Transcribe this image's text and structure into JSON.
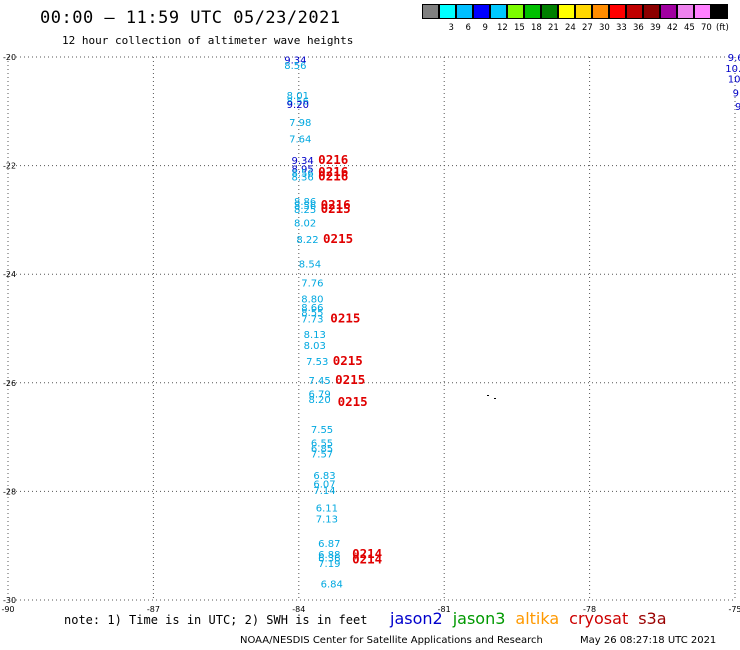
{
  "title": "00:00 – 11:59 UTC 05/23/2021",
  "subtitle": "12 hour collection of altimeter wave heights",
  "legend": {
    "unit": "(ft)",
    "bins": [
      {
        "label": "",
        "color": "#808080"
      },
      {
        "label": "3",
        "color": "#00ffff"
      },
      {
        "label": "6",
        "color": "#00bfff"
      },
      {
        "label": "9",
        "color": "#0000ff"
      },
      {
        "label": "12",
        "color": "#00c8ff"
      },
      {
        "label": "15",
        "color": "#7cfc00"
      },
      {
        "label": "18",
        "color": "#00c000"
      },
      {
        "label": "21",
        "color": "#008000"
      },
      {
        "label": "24",
        "color": "#ffff00"
      },
      {
        "label": "27",
        "color": "#ffd700"
      },
      {
        "label": "30",
        "color": "#ff8c00"
      },
      {
        "label": "33",
        "color": "#ff0000"
      },
      {
        "label": "36",
        "color": "#c00000"
      },
      {
        "label": "39",
        "color": "#8b0000"
      },
      {
        "label": "42",
        "color": "#a000a0"
      },
      {
        "label": "45",
        "color": "#ee82ee"
      },
      {
        "label": "70",
        "color": "#ff80ff"
      },
      {
        "label": "",
        "color": "#000000"
      }
    ]
  },
  "map": {
    "lon_range": [
      -90,
      -75
    ],
    "lat_range": [
      -30,
      -20
    ],
    "lon_ticks": [
      "-90",
      "-87",
      "-84",
      "-81",
      "-78",
      "-75"
    ],
    "lat_ticks": [
      "-20",
      "-22",
      "-24",
      "-26",
      "-28",
      "-30"
    ],
    "grid": "dotted"
  },
  "observations": [
    {
      "lon": -84.3,
      "lat": -20.05,
      "swh": "9.34",
      "color": "#0000c8"
    },
    {
      "lon": -84.3,
      "lat": -20.15,
      "swh": "8.56",
      "color": "#00a8e0"
    },
    {
      "lon": -84.25,
      "lat": -20.7,
      "swh": "8.01",
      "color": "#00a8e0"
    },
    {
      "lon": -84.25,
      "lat": -20.8,
      "swh": "8.56",
      "color": "#00a8e0"
    },
    {
      "lon": -84.25,
      "lat": -20.87,
      "swh": "9.20",
      "color": "#0000c8"
    },
    {
      "lon": -84.2,
      "lat": -21.2,
      "swh": "7.98",
      "color": "#00a8e0"
    },
    {
      "lon": -84.2,
      "lat": -21.5,
      "swh": "7.64",
      "color": "#00a8e0"
    },
    {
      "lon": -84.15,
      "lat": -21.9,
      "swh": "9.34",
      "color": "#0000c8"
    },
    {
      "lon": -84.15,
      "lat": -22.05,
      "swh": "8.95",
      "color": "#0000c8"
    },
    {
      "lon": -84.15,
      "lat": -22.13,
      "swh": "8.56",
      "color": "#00a8e0"
    },
    {
      "lon": -84.15,
      "lat": -22.2,
      "swh": "8.36",
      "color": "#00a8e0"
    },
    {
      "lon": -84.1,
      "lat": -22.65,
      "swh": "8.86",
      "color": "#00a8e0"
    },
    {
      "lon": -84.1,
      "lat": -22.73,
      "swh": "8.56",
      "color": "#00a8e0"
    },
    {
      "lon": -84.1,
      "lat": -22.8,
      "swh": "8.25",
      "color": "#00a8e0"
    },
    {
      "lon": -84.1,
      "lat": -23.05,
      "swh": "8.02",
      "color": "#00a8e0"
    },
    {
      "lon": -84.05,
      "lat": -23.35,
      "swh": "8.22",
      "color": "#00a8e0"
    },
    {
      "lon": -84.0,
      "lat": -23.8,
      "swh": "8.54",
      "color": "#00a8e0"
    },
    {
      "lon": -83.95,
      "lat": -24.15,
      "swh": "7.76",
      "color": "#00a8e0"
    },
    {
      "lon": -83.95,
      "lat": -24.45,
      "swh": "8.80",
      "color": "#00a8e0"
    },
    {
      "lon": -83.95,
      "lat": -24.6,
      "swh": "8.66",
      "color": "#00a8e0"
    },
    {
      "lon": -83.95,
      "lat": -24.7,
      "swh": "8.55",
      "color": "#00a8e0"
    },
    {
      "lon": -83.95,
      "lat": -24.82,
      "swh": "7.73",
      "color": "#00a8e0"
    },
    {
      "lon": -83.9,
      "lat": -25.1,
      "swh": "8.13",
      "color": "#00a8e0"
    },
    {
      "lon": -83.9,
      "lat": -25.3,
      "swh": "8.03",
      "color": "#00a8e0"
    },
    {
      "lon": -83.85,
      "lat": -25.6,
      "swh": "7.53",
      "color": "#00a8e0"
    },
    {
      "lon": -83.8,
      "lat": -25.95,
      "swh": "7.45",
      "color": "#00a8e0"
    },
    {
      "lon": -83.8,
      "lat": -26.2,
      "swh": "6.79",
      "color": "#00a8e0"
    },
    {
      "lon": -83.8,
      "lat": -26.3,
      "swh": "8.20",
      "color": "#00a8e0"
    },
    {
      "lon": -83.75,
      "lat": -26.85,
      "swh": "7.55",
      "color": "#00a8e0"
    },
    {
      "lon": -83.75,
      "lat": -27.1,
      "swh": "6.55",
      "color": "#00a8e0"
    },
    {
      "lon": -83.75,
      "lat": -27.2,
      "swh": "6.85",
      "color": "#00a8e0"
    },
    {
      "lon": -83.75,
      "lat": -27.3,
      "swh": "7.57",
      "color": "#00a8e0"
    },
    {
      "lon": -83.7,
      "lat": -27.7,
      "swh": "6.83",
      "color": "#00a8e0"
    },
    {
      "lon": -83.7,
      "lat": -27.85,
      "swh": "6.07",
      "color": "#00a8e0"
    },
    {
      "lon": -83.7,
      "lat": -27.97,
      "swh": "7.14",
      "color": "#00a8e0"
    },
    {
      "lon": -83.65,
      "lat": -28.3,
      "swh": "6.11",
      "color": "#00a8e0"
    },
    {
      "lon": -83.65,
      "lat": -28.5,
      "swh": "7.13",
      "color": "#00a8e0"
    },
    {
      "lon": -83.6,
      "lat": -28.95,
      "swh": "6.87",
      "color": "#00a8e0"
    },
    {
      "lon": -83.6,
      "lat": -29.15,
      "swh": "6.88",
      "color": "#00a8e0"
    },
    {
      "lon": -83.6,
      "lat": -29.22,
      "swh": "6.36",
      "color": "#00a8e0"
    },
    {
      "lon": -83.6,
      "lat": -29.32,
      "swh": "7.19",
      "color": "#00a8e0"
    },
    {
      "lon": -83.55,
      "lat": -29.7,
      "swh": "6.84",
      "color": "#00a8e0"
    },
    {
      "lon": -75.15,
      "lat": -20.0,
      "swh": "9.6",
      "color": "#0000c8"
    },
    {
      "lon": -75.2,
      "lat": -20.2,
      "swh": "10.",
      "color": "#0000c8"
    },
    {
      "lon": -75.15,
      "lat": -20.4,
      "swh": "10",
      "color": "#0000c8"
    },
    {
      "lon": -75.05,
      "lat": -20.65,
      "swh": "9",
      "color": "#0000c8"
    },
    {
      "lon": -75.0,
      "lat": -20.9,
      "swh": "9",
      "color": "#0000c8"
    }
  ],
  "pass_labels": [
    {
      "lon": -83.6,
      "lat": -21.9,
      "text": "0216"
    },
    {
      "lon": -83.6,
      "lat": -22.12,
      "text": "0216"
    },
    {
      "lon": -83.6,
      "lat": -22.2,
      "text": "0216"
    },
    {
      "lon": -83.55,
      "lat": -22.73,
      "text": "0216"
    },
    {
      "lon": -83.55,
      "lat": -22.8,
      "text": "0215"
    },
    {
      "lon": -83.5,
      "lat": -23.35,
      "text": "0215"
    },
    {
      "lon": -83.35,
      "lat": -24.82,
      "text": "0215"
    },
    {
      "lon": -83.3,
      "lat": -25.6,
      "text": "0215"
    },
    {
      "lon": -83.25,
      "lat": -25.95,
      "text": "0215"
    },
    {
      "lon": -83.2,
      "lat": -26.35,
      "text": "0215"
    },
    {
      "lon": -82.9,
      "lat": -29.15,
      "text": "0214"
    },
    {
      "lon": -82.9,
      "lat": -29.25,
      "text": "0214"
    }
  ],
  "note": "note: 1) Time is in UTC; 2) SWH is in feet",
  "missions": [
    {
      "name": "jason2",
      "color": "#0000cc"
    },
    {
      "name": "jason3",
      "color": "#009900"
    },
    {
      "name": "altika",
      "color": "#ff9900"
    },
    {
      "name": "cryosat",
      "color": "#cc0000"
    },
    {
      "name": "s3a",
      "color": "#990000"
    }
  ],
  "credit": "NOAA/NESDIS Center for Satellite Applications and Research",
  "generated": "May 26 08:27:18 UTC 2021"
}
